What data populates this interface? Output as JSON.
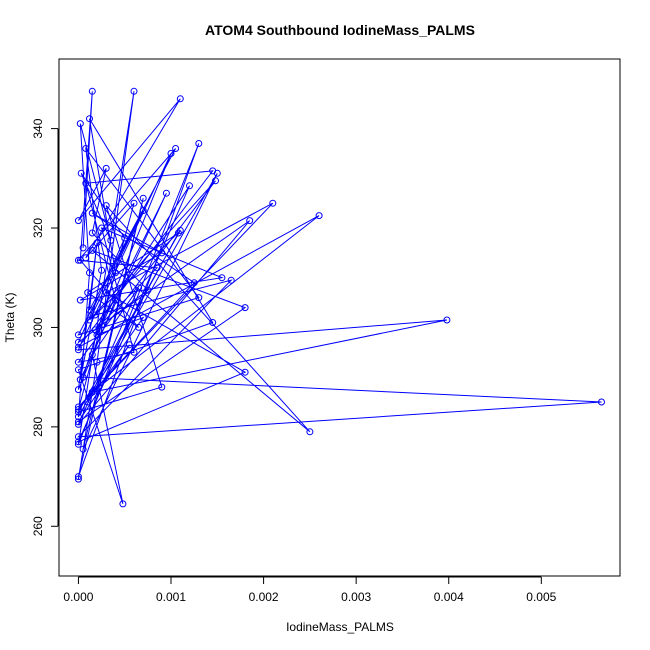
{
  "chart_data": {
    "type": "line",
    "title": "ATOM4 Southbound IodineMass_PALMS",
    "xlabel": "IodineMass_PALMS",
    "ylabel": "Theta (K)",
    "xlim": [
      -0.00021,
      0.00585
    ],
    "ylim": [
      250,
      354
    ],
    "x_ticks": [
      0.0,
      0.001,
      0.002,
      0.003,
      0.004,
      0.005
    ],
    "x_tick_labels": [
      "0.000",
      "0.001",
      "0.002",
      "0.003",
      "0.004",
      "0.005"
    ],
    "y_ticks": [
      260,
      280,
      300,
      320,
      340
    ],
    "y_tick_labels": [
      "260",
      "280",
      "300",
      "320",
      "340"
    ],
    "grid": false,
    "legend": "none",
    "markers": "open-circle",
    "series": [
      {
        "color": "#0000ff",
        "x": [
          0.0,
          0.0002,
          0.0006,
          0.0,
          0.0013,
          0.0,
          0.0007,
          5e-05,
          0.0015,
          0.0001,
          0.00055,
          0.0,
          0.0018,
          0.00015,
          0.0025,
          0.0003,
          0.0009,
          0.0,
          0.0011,
          0.00018,
          0.00165,
          0.0,
          0.00565,
          5e-05,
          0.0004,
          0.00012,
          0.00145,
          0.0,
          0.00048,
          0.00015,
          0.00065,
          0.0,
          0.00185,
          0.00025,
          0.00095,
          2e-05,
          0.00025,
          8e-05,
          0.0013,
          0.0,
          0.0007,
          0.00012,
          0.00148,
          0.0,
          0.0006,
          0.00025,
          0.00155,
          2e-05,
          0.0009,
          0.00015,
          0.00125,
          0.0,
          0.0021,
          0.0003,
          0.0018,
          0.0,
          0.0012,
          0.00018,
          0.00085,
          0.0,
          0.00105,
          0.00012,
          0.0002,
          0.0,
          0.0004,
          8e-05,
          0.00145,
          0.0,
          0.0026,
          0.00015,
          0.00398,
          0.0,
          0.001,
          0.0002,
          0.0007,
          0.0,
          0.0006,
          8e-05,
          0.0011,
          0.0,
          0.0003,
          0.00015,
          0.00075,
          0.0,
          0.0005,
          3e-05,
          0.00035,
          2e-05,
          0.00012,
          0.0,
          0.00108,
          0.0001,
          0.00065,
          2e-05,
          0.00015,
          5e-05
        ],
        "y": [
          269.5,
          293.0,
          347.5,
          276.5,
          337.0,
          270.0,
          326.0,
          275.5,
          331.0,
          285.0,
          296.5,
          281.0,
          304.0,
          315.5,
          279.0,
          324.5,
          288.0,
          283.0,
          319.5,
          302.5,
          309.5,
          278.0,
          285.0,
          290.0,
          311.0,
          342.0,
          301.0,
          291.5,
          264.5,
          294.5,
          308.0,
          280.5,
          321.5,
          300.5,
          327.0,
          289.5,
          311.5,
          336.0,
          306.0,
          298.5,
          323.5,
          301.5,
          329.5,
          293.0,
          295.0,
          320.0,
          310.0,
          305.5,
          315.0,
          323.0,
          309.0,
          284.0,
          325.0,
          307.0,
          291.0,
          277.0,
          328.5,
          299.5,
          312.0,
          313.5,
          336.0,
          303.5,
          317.0,
          287.5,
          305.5,
          329.0,
          331.5,
          296.0,
          322.5,
          287.0,
          301.5,
          295.5,
          335.0,
          298.5,
          302.0,
          283.5,
          325.0,
          314.0,
          346.0,
          321.5,
          332.0,
          319.0,
          307.5,
          297.0,
          318.0,
          331.0,
          317.5,
          341.0,
          311.0,
          282.0,
          319.0,
          307.0,
          300.0,
          313.5,
          347.5,
          316.0
        ]
      }
    ]
  }
}
